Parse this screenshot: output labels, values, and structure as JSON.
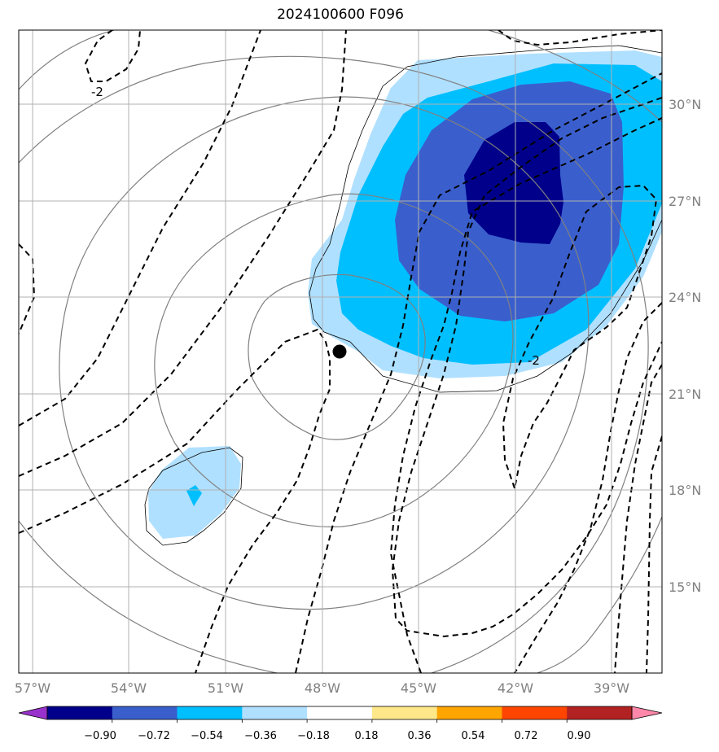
{
  "title": "2024100600 F096",
  "lon_ticks": [
    "57°W",
    "54°W",
    "51°W",
    "48°W",
    "45°W",
    "42°W",
    "39°W"
  ],
  "lat_ticks": [
    "30°N",
    "27°N",
    "24°N",
    "21°N",
    "18°N",
    "15°N"
  ],
  "contour_labels": [
    "-2",
    "-2"
  ],
  "colorbar": {
    "ticks": [
      "−0.90",
      "−0.72",
      "−0.54",
      "−0.36",
      "−0.18",
      "0.18",
      "0.36",
      "0.54",
      "0.72",
      "0.90"
    ],
    "colors": [
      "#9932cc",
      "#00008b",
      "#3a5fcd",
      "#00bfff",
      "#b0e0ff",
      "#ffffff",
      "#ffe88a",
      "#ffa500",
      "#ff4500",
      "#b22222",
      "#ff88aa"
    ]
  },
  "fill_colors": {
    "level1": "#b0e0ff",
    "level2": "#00bfff",
    "level3": "#3a5fcd",
    "level4": "#00008b"
  },
  "marker": "storm-center"
}
